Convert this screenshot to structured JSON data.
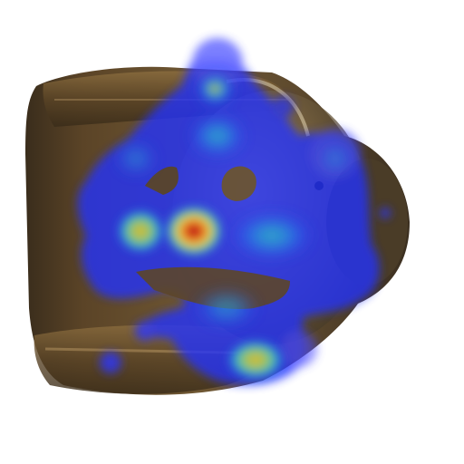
{
  "scene": {
    "background": "#ffffff",
    "subject": "bronze-object-top-view",
    "overlay": "attention-heatmap",
    "palette": {
      "metal_dark": "#2e2418",
      "metal_mid": "#6b5333",
      "metal_light": "#a8884f",
      "heat_low": "#1f2bff",
      "heat_mid": "#27b6c4",
      "heat_high": "#f0d23a",
      "heat_peak": "#b3120f"
    },
    "heatmap_levels": [
      0.25,
      0.5,
      0.75,
      1.0
    ]
  }
}
